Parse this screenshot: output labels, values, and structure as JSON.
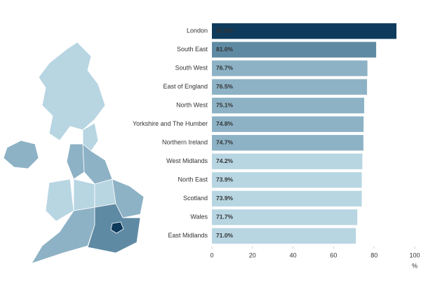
{
  "chart_data": {
    "type": "hbar",
    "categories": [
      "London",
      "South East",
      "South West",
      "East of England",
      "North West",
      "Yorkshire and The Humber",
      "Northern Ireland",
      "West Midlands",
      "North East",
      "Scotland",
      "Wales",
      "East Midlands"
    ],
    "values": [
      91.0,
      81.0,
      76.7,
      76.5,
      75.1,
      74.8,
      74.7,
      74.2,
      73.9,
      73.9,
      71.7,
      71.0
    ],
    "value_labels": [
      "91.0%",
      "81.0%",
      "76.7%",
      "76.5%",
      "75.1%",
      "74.8%",
      "74.7%",
      "74.2%",
      "73.9%",
      "73.9%",
      "71.7%",
      "71.0%"
    ],
    "colors": [
      "#0e3b5c",
      "#5f8aa3",
      "#8db2c5",
      "#8db2c5",
      "#8db2c5",
      "#8db2c5",
      "#8db2c5",
      "#b8d5e2",
      "#b8d5e2",
      "#b8d5e2",
      "#b8d5e2",
      "#b8d5e2"
    ],
    "xlim": [
      0,
      100
    ],
    "xticks": [
      0,
      20,
      40,
      60,
      80,
      100
    ],
    "xlabel": "%"
  }
}
